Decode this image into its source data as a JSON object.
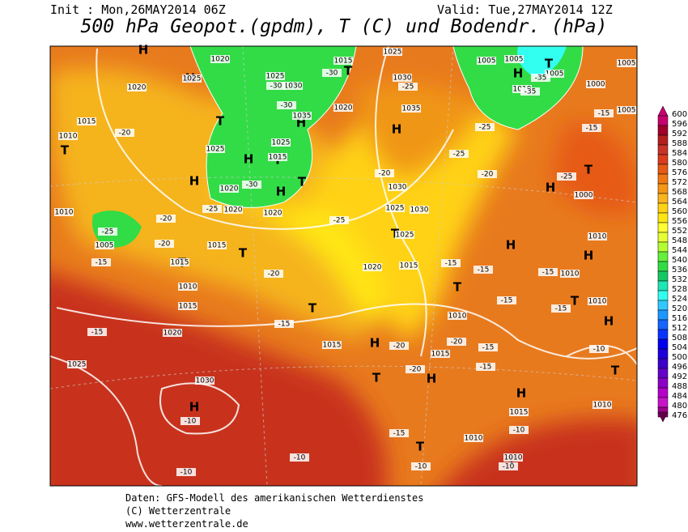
{
  "header": {
    "init": "Init : Mon,26MAY2014 06Z",
    "valid": "Valid: Tue,27MAY2014 12Z",
    "title": "500 hPa Geopot.(gpdm), T (C) und Bodendr. (hPa)"
  },
  "colorbar": {
    "levels": [
      600,
      596,
      592,
      588,
      584,
      580,
      576,
      572,
      568,
      564,
      560,
      556,
      552,
      548,
      544,
      540,
      536,
      532,
      528,
      524,
      520,
      516,
      512,
      508,
      504,
      500,
      496,
      492,
      488,
      484,
      480,
      476
    ],
    "colors": [
      "#c8006e",
      "#a0002a",
      "#b41e1e",
      "#c83228",
      "#dc3c1e",
      "#e65a14",
      "#f07814",
      "#f59614",
      "#fab41e",
      "#ffd214",
      "#ffe614",
      "#ffff32",
      "#e6ff32",
      "#b4ff32",
      "#64f03c",
      "#32dc46",
      "#14c864",
      "#1ee6b4",
      "#32fff0",
      "#32c8ff",
      "#1e96ff",
      "#1464ff",
      "#0a32ff",
      "#0000f0",
      "#1e00dc",
      "#3c00c8",
      "#6400c8",
      "#8c00c8",
      "#b400c8",
      "#c814c8",
      "#a0008c",
      "#64004b"
    ]
  },
  "pressure_centers": [
    "H",
    "H",
    "T",
    "T",
    "H",
    "H",
    "T",
    "H",
    "H",
    "T",
    "T",
    "H",
    "H",
    "T",
    "T",
    "T",
    "T",
    "H",
    "T",
    "H",
    "H",
    "H",
    "T",
    "H",
    "T",
    "H",
    "T",
    "T",
    "H",
    "T",
    "T",
    "T",
    "H"
  ],
  "isobar_labels": [
    1020,
    1025,
    1020,
    1015,
    1010,
    1025,
    1025,
    1030,
    1035,
    1025,
    1015,
    1020,
    1020,
    1020,
    1015,
    1020,
    1025,
    1030,
    1035,
    1030,
    1025,
    1030,
    1025,
    1005,
    1005,
    1005,
    1010,
    1000,
    1005,
    1005,
    1000,
    1010,
    1010,
    1010,
    1010,
    1015,
    1015,
    1010,
    1010,
    1010,
    1015,
    1015,
    1010,
    1015,
    1020,
    1015,
    1020,
    1015,
    1025,
    1030,
    1010,
    1005
  ],
  "temperature_labels": [
    -30,
    -30,
    -30,
    -25,
    -25,
    -25,
    -20,
    -20,
    -20,
    -25,
    -15,
    -15,
    -30,
    -25,
    -20,
    -25,
    -25,
    -20,
    -15,
    -20,
    -15,
    -15,
    -15,
    -15,
    -15,
    -15,
    -15,
    -20,
    -20,
    -15,
    -15,
    -20,
    -10,
    -10,
    -10,
    -15,
    -10,
    -10,
    -10,
    -10,
    -35,
    -35
  ],
  "footer": {
    "line1": "Daten: GFS-Modell des amerikanischen Wetterdienstes",
    "line2": "(C) Wetterzentrale",
    "line3": "www.wetterzentrale.de"
  }
}
